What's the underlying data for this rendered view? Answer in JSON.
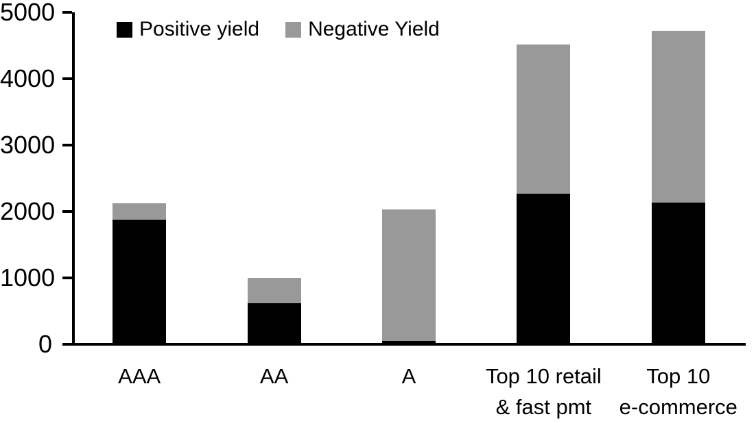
{
  "chart_data": {
    "type": "bar",
    "stacked": true,
    "title": "",
    "xlabel": "",
    "ylabel": "",
    "categories": [
      "AAA",
      "AA",
      "A",
      "Top 10 retail\n& fast pmt",
      "Top 10\ne-commerce"
    ],
    "series": [
      {
        "name": "Positive yield",
        "color": "#000000",
        "values": [
          1880,
          620,
          50,
          2270,
          2130
        ]
      },
      {
        "name": "Negative Yield",
        "color": "#999999",
        "values": [
          240,
          380,
          1980,
          2250,
          2590
        ]
      }
    ],
    "totals": [
      2120,
      1000,
      2030,
      4520,
      4720
    ],
    "ylim": [
      0,
      5000
    ],
    "yticks": [
      0,
      1000,
      2000,
      3000,
      4000,
      5000
    ],
    "grid": false,
    "legend_position": "top"
  },
  "colors": {
    "axis": "#000000",
    "background": "#ffffff",
    "positive_yield": "#000000",
    "negative_yield": "#999999"
  }
}
